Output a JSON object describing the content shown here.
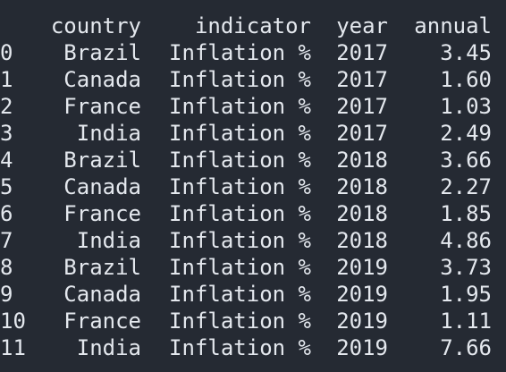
{
  "table": {
    "columns": [
      "country",
      "indicator",
      "year",
      "annual"
    ],
    "rows": [
      {
        "index": "0",
        "country": "Brazil",
        "indicator": "Inflation %",
        "year": "2017",
        "annual": "3.45"
      },
      {
        "index": "1",
        "country": "Canada",
        "indicator": "Inflation %",
        "year": "2017",
        "annual": "1.60"
      },
      {
        "index": "2",
        "country": "France",
        "indicator": "Inflation %",
        "year": "2017",
        "annual": "1.03"
      },
      {
        "index": "3",
        "country": "India",
        "indicator": "Inflation %",
        "year": "2017",
        "annual": "2.49"
      },
      {
        "index": "4",
        "country": "Brazil",
        "indicator": "Inflation %",
        "year": "2018",
        "annual": "3.66"
      },
      {
        "index": "5",
        "country": "Canada",
        "indicator": "Inflation %",
        "year": "2018",
        "annual": "2.27"
      },
      {
        "index": "6",
        "country": "France",
        "indicator": "Inflation %",
        "year": "2018",
        "annual": "1.85"
      },
      {
        "index": "7",
        "country": "India",
        "indicator": "Inflation %",
        "year": "2018",
        "annual": "4.86"
      },
      {
        "index": "8",
        "country": "Brazil",
        "indicator": "Inflation %",
        "year": "2019",
        "annual": "3.73"
      },
      {
        "index": "9",
        "country": "Canada",
        "indicator": "Inflation %",
        "year": "2019",
        "annual": "1.95"
      },
      {
        "index": "10",
        "country": "France",
        "indicator": "Inflation %",
        "year": "2019",
        "annual": "1.11"
      },
      {
        "index": "11",
        "country": "India",
        "indicator": "Inflation %",
        "year": "2019",
        "annual": "7.66"
      }
    ]
  },
  "colors": {
    "background": "#252a33",
    "text": "#e4e8ee"
  }
}
